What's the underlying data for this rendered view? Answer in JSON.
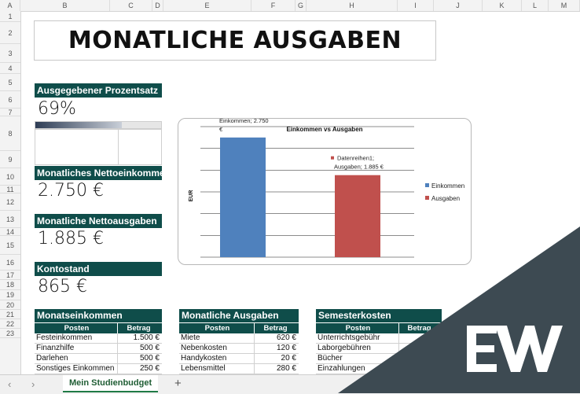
{
  "columns": [
    "A",
    "B",
    "C",
    "D",
    "E",
    "F",
    "G",
    "H",
    "I",
    "J",
    "K",
    "L",
    "M"
  ],
  "rows": [
    "1",
    "2",
    "3",
    "4",
    "5",
    "6",
    "7",
    "8",
    "9",
    "10",
    "11",
    "12",
    "13",
    "14",
    "15",
    "16",
    "17",
    "18",
    "19",
    "20",
    "21",
    "22",
    "23"
  ],
  "title": "MONATLICHE AUSGABEN",
  "kpis": {
    "percent": {
      "label": "Ausgegebener Prozentsatz",
      "value": "69%",
      "fraction": 0.69
    },
    "income": {
      "label": "Monatliches Nettoeinkommen",
      "value": "2.750 €"
    },
    "expenses": {
      "label": "Monatliche Nettoausgaben",
      "value": "1.885 €"
    },
    "balance": {
      "label": "Kontostand",
      "value": "865 €"
    }
  },
  "chart_data": {
    "type": "bar",
    "title": "Einkommen vs Ausgaben",
    "ylabel": "EUR",
    "categories": [
      "Einkommen",
      "Ausgaben"
    ],
    "values": [
      2750,
      1885
    ],
    "colors": [
      "#4f81bd",
      "#c0504d"
    ],
    "data_labels": [
      [
        "Datenreihen1;",
        "Einkommen; 2.750",
        "€"
      ],
      [
        "Datenreihen1;",
        "Ausgaben; 1.885 €"
      ]
    ],
    "legend": [
      "Einkommen",
      "Ausgaben"
    ],
    "legend_position": "right",
    "ylim": [
      0,
      3000
    ],
    "grid": true
  },
  "tables": {
    "income": {
      "title": "Monatseinkommen",
      "headers": [
        "Posten",
        "Betrag"
      ],
      "rows": [
        [
          "Festeinkommen",
          "1.500 €"
        ],
        [
          "Finanzhilfe",
          "500 €"
        ],
        [
          "Darlehen",
          "500 €"
        ],
        [
          "Sonstiges Einkommen",
          "250 €"
        ]
      ]
    },
    "expenses": {
      "title": "Monatliche Ausgaben",
      "headers": [
        "Posten",
        "Betrag"
      ],
      "rows": [
        [
          "Miete",
          "620 €"
        ],
        [
          "Nebenkosten",
          "120 €"
        ],
        [
          "Handykosten",
          "20 €"
        ],
        [
          "Lebensmittel",
          "280 €"
        ]
      ]
    },
    "semester": {
      "title": "Semesterkosten",
      "headers": [
        "Posten",
        "Betrag"
      ],
      "rows": [
        [
          "Unterrichtsgebühr",
          ""
        ],
        [
          "Laborgebühren",
          ""
        ],
        [
          "Bücher",
          ""
        ],
        [
          "Einzahlungen",
          ""
        ]
      ]
    }
  },
  "sheet_tabs": {
    "active": "Mein Studienbudget",
    "prev": "‹",
    "next": "›",
    "add": "+"
  },
  "colors": {
    "header_teal": "#0f4d4a",
    "watermark": "#3d4a52"
  }
}
